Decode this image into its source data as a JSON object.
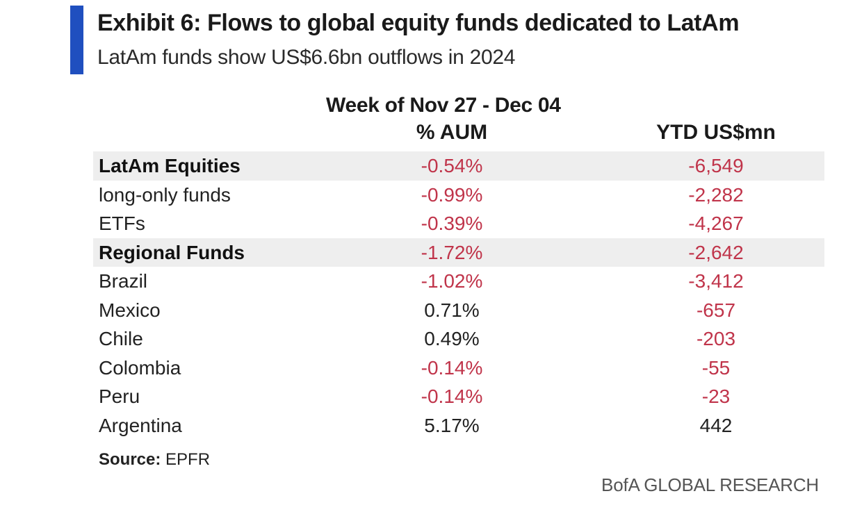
{
  "header": {
    "title": "Exhibit 6: Flows to global equity funds dedicated to LatAm",
    "subtitle": "LatAm funds show US$6.6bn outflows in 2024",
    "accent_color": "#1f4fbf"
  },
  "columns": {
    "week": "Week of Nov 27 - Dec 04",
    "aum": "% AUM",
    "ytd": "YTD US$mn"
  },
  "rows": [
    {
      "label": "LatAm Equities",
      "aum": "-0.54%",
      "ytd": "-6,549",
      "bold": true,
      "shaded": true
    },
    {
      "label": "long-only funds",
      "aum": "-0.99%",
      "ytd": "-2,282",
      "bold": false,
      "shaded": false
    },
    {
      "label": "ETFs",
      "aum": "-0.39%",
      "ytd": "-4,267",
      "bold": false,
      "shaded": false
    },
    {
      "label": "Regional Funds",
      "aum": "-1.72%",
      "ytd": "-2,642",
      "bold": true,
      "shaded": true
    },
    {
      "label": "Brazil",
      "aum": "-1.02%",
      "ytd": "-3,412",
      "bold": false,
      "shaded": false
    },
    {
      "label": "Mexico",
      "aum": "0.71%",
      "ytd": "-657",
      "bold": false,
      "shaded": false
    },
    {
      "label": "Chile",
      "aum": "0.49%",
      "ytd": "-203",
      "bold": false,
      "shaded": false
    },
    {
      "label": "Colombia",
      "aum": "-0.14%",
      "ytd": "-55",
      "bold": false,
      "shaded": false
    },
    {
      "label": "Peru",
      "aum": "-0.14%",
      "ytd": "-23",
      "bold": false,
      "shaded": false
    },
    {
      "label": "Argentina",
      "aum": "5.17%",
      "ytd": "442",
      "bold": false,
      "shaded": false
    }
  ],
  "source": {
    "label": "Source:",
    "value": " EPFR"
  },
  "brand": "BofA GLOBAL RESEARCH",
  "colors": {
    "negative": "#c0344a",
    "positive": "#222222",
    "shade": "#eeeeee"
  }
}
